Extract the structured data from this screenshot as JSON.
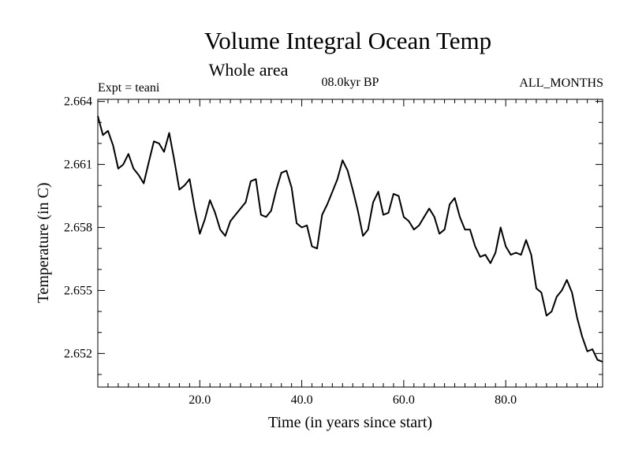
{
  "chart_data": {
    "type": "line",
    "title": "Volume Integral Ocean Temp",
    "subtitle": "Whole area",
    "header_left": "Expt = teani",
    "header_center": "08.0kyr BP",
    "header_right": "ALL_MONTHS",
    "xlabel": "Time (in years since start)",
    "ylabel": "Temperature (in C)",
    "xlim": [
      0,
      99
    ],
    "ylim": [
      2.6504,
      2.6641
    ],
    "x_ticks": [
      20,
      40,
      60,
      80
    ],
    "x_tick_labels": [
      "20.0",
      "40.0",
      "60.0",
      "80.0"
    ],
    "y_ticks": [
      2.652,
      2.655,
      2.658,
      2.661,
      2.664
    ],
    "y_tick_labels": [
      "2.652",
      "2.655",
      "2.658",
      "2.661",
      "2.664"
    ],
    "grid": false,
    "series": [
      {
        "name": "Volume Integral Ocean Temp",
        "x": [
          0,
          1,
          2,
          3,
          4,
          5,
          6,
          7,
          8,
          9,
          10,
          11,
          12,
          13,
          14,
          15,
          16,
          17,
          18,
          19,
          20,
          21,
          22,
          23,
          24,
          25,
          26,
          27,
          28,
          29,
          30,
          31,
          32,
          33,
          34,
          35,
          36,
          37,
          38,
          39,
          40,
          41,
          42,
          43,
          44,
          45,
          46,
          47,
          48,
          49,
          50,
          51,
          52,
          53,
          54,
          55,
          56,
          57,
          58,
          59,
          60,
          61,
          62,
          63,
          64,
          65,
          66,
          67,
          68,
          69,
          70,
          71,
          72,
          73,
          74,
          75,
          76,
          77,
          78,
          79,
          80,
          81,
          82,
          83,
          84,
          85,
          86,
          87,
          88,
          89,
          90,
          91,
          92,
          93,
          94,
          95,
          96,
          97,
          98,
          99
        ],
        "values": [
          2.6633,
          2.6624,
          2.6626,
          2.6619,
          2.6608,
          2.661,
          2.6615,
          2.6608,
          2.6605,
          2.6601,
          2.6611,
          2.6621,
          2.662,
          2.6616,
          2.6625,
          2.6612,
          2.6598,
          2.66,
          2.6603,
          2.6589,
          2.6577,
          2.6584,
          2.6593,
          2.6587,
          2.6579,
          2.6576,
          2.6583,
          2.6586,
          2.6589,
          2.6592,
          2.6602,
          2.6603,
          2.6586,
          2.6585,
          2.6588,
          2.6598,
          2.6606,
          2.6607,
          2.6599,
          2.6582,
          2.658,
          2.6581,
          2.6571,
          2.657,
          2.6586,
          2.6591,
          2.6597,
          2.6603,
          2.6612,
          2.6607,
          2.6598,
          2.6588,
          2.6576,
          2.6579,
          2.6592,
          2.6597,
          2.6586,
          2.6587,
          2.6596,
          2.6595,
          2.6585,
          2.6583,
          2.6579,
          2.6581,
          2.6585,
          2.6589,
          2.6585,
          2.6577,
          2.6579,
          2.6591,
          2.6594,
          2.6585,
          2.6579,
          2.6579,
          2.6571,
          2.6566,
          2.6567,
          2.6563,
          2.6568,
          2.658,
          2.6571,
          2.6567,
          2.6568,
          2.6567,
          2.6574,
          2.6567,
          2.6551,
          2.6549,
          2.6538,
          2.654,
          2.6547,
          2.655,
          2.6555,
          2.6549,
          2.6537,
          2.6528,
          2.6521,
          2.6522,
          2.6517,
          2.6516
        ]
      }
    ]
  }
}
